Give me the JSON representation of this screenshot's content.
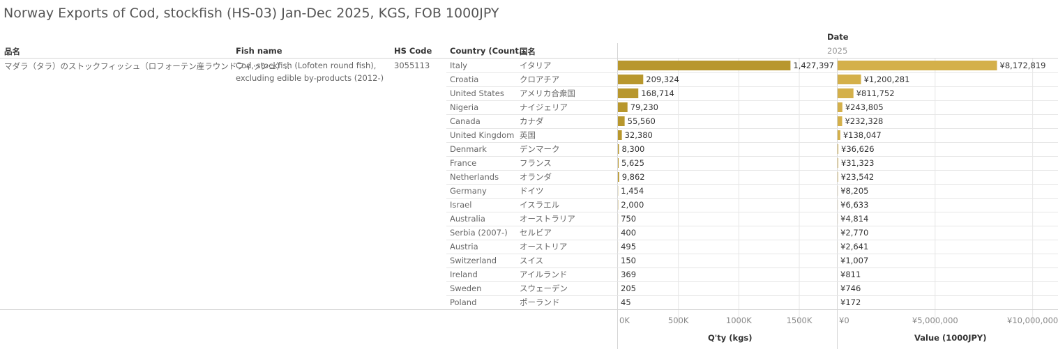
{
  "title": "Norway Exports of Cod, stockfish (HS-03) Jan-Dec 2025, KGS, FOB 1000JPY",
  "headers": {
    "date": "Date",
    "hinmei": "品名",
    "fish_name": "Fish name",
    "hs_code": "HS Code",
    "country": "Country (Count..",
    "kokumei": "国名",
    "year": "2025"
  },
  "product": {
    "hinmei": "マダラ（タラ）のストックフィッシュ（ロフォーテン産ラウンドフィッシュ）..",
    "fish_name_line1": "Cod, stockfish (Lofoten round fish),",
    "fish_name_line2": "excluding edible by-products (2012-)",
    "hs_code": "3055113"
  },
  "colors": {
    "qty_bar": "#b8972d",
    "value_bar": "#d4b04a",
    "grid": "#e6e6e6",
    "divider": "#d4d4d4"
  },
  "chart_data": {
    "type": "bar",
    "orientation": "horizontal",
    "title": "Norway Exports of Cod, stockfish (HS-03) Jan-Dec 2025, KGS, FOB 1000JPY",
    "categories": [
      {
        "country": "Italy",
        "jp": "イタリア"
      },
      {
        "country": "Croatia",
        "jp": "クロアチア"
      },
      {
        "country": "United States",
        "jp": "アメリカ合衆国"
      },
      {
        "country": "Nigeria",
        "jp": "ナイジェリア"
      },
      {
        "country": "Canada",
        "jp": "カナダ"
      },
      {
        "country": "United Kingdom",
        "jp": "英国"
      },
      {
        "country": "Denmark",
        "jp": "デンマーク"
      },
      {
        "country": "France",
        "jp": "フランス"
      },
      {
        "country": "Netherlands",
        "jp": "オランダ"
      },
      {
        "country": "Germany",
        "jp": "ドイツ"
      },
      {
        "country": "Israel",
        "jp": "イスラエル"
      },
      {
        "country": "Australia",
        "jp": "オーストラリア"
      },
      {
        "country": "Serbia (2007-)",
        "jp": "セルビア"
      },
      {
        "country": "Austria",
        "jp": "オーストリア"
      },
      {
        "country": "Switzerland",
        "jp": "スイス"
      },
      {
        "country": "Ireland",
        "jp": "アイルランド"
      },
      {
        "country": "Sweden",
        "jp": "スウェーデン"
      },
      {
        "country": "Poland",
        "jp": "ポーランド"
      }
    ],
    "series": [
      {
        "name": "Q'ty (kgs)",
        "values": [
          1427397,
          209324,
          168714,
          79230,
          55560,
          32380,
          8300,
          5625,
          9862,
          1454,
          2000,
          750,
          400,
          495,
          150,
          369,
          205,
          45
        ],
        "labels": [
          "1,427,397",
          "209,324",
          "168,714",
          "79,230",
          "55,560",
          "32,380",
          "8,300",
          "5,625",
          "9,862",
          "1,454",
          "2,000",
          "750",
          "400",
          "495",
          "150",
          "369",
          "205",
          "45"
        ],
        "axis_title": "Q'ty (kgs)",
        "xlim": [
          0,
          1800000
        ],
        "ticks": [
          0,
          500000,
          1000000,
          1500000
        ],
        "tick_labels": [
          "0K",
          "500K",
          "1000K",
          "1500K"
        ]
      },
      {
        "name": "Value (1000JPY)",
        "values": [
          8172819,
          1200281,
          811752,
          243805,
          232328,
          138047,
          36626,
          31323,
          23542,
          8205,
          6633,
          4814,
          2770,
          2641,
          1007,
          811,
          746,
          172
        ],
        "labels": [
          "¥8,172,819",
          "¥1,200,281",
          "¥811,752",
          "¥243,805",
          "¥232,328",
          "¥138,047",
          "¥36,626",
          "¥31,323",
          "¥23,542",
          "¥8,205",
          "¥6,633",
          "¥4,814",
          "¥2,770",
          "¥2,641",
          "¥1,007",
          "¥811",
          "¥746",
          "¥172"
        ],
        "axis_title": "Value (1000JPY)",
        "xlim": [
          0,
          11300000
        ],
        "ticks": [
          0,
          5000000,
          10000000
        ],
        "tick_labels": [
          "¥0",
          "¥5,000,000",
          "¥10,000,000"
        ]
      }
    ],
    "grid": true,
    "legend": "none"
  }
}
